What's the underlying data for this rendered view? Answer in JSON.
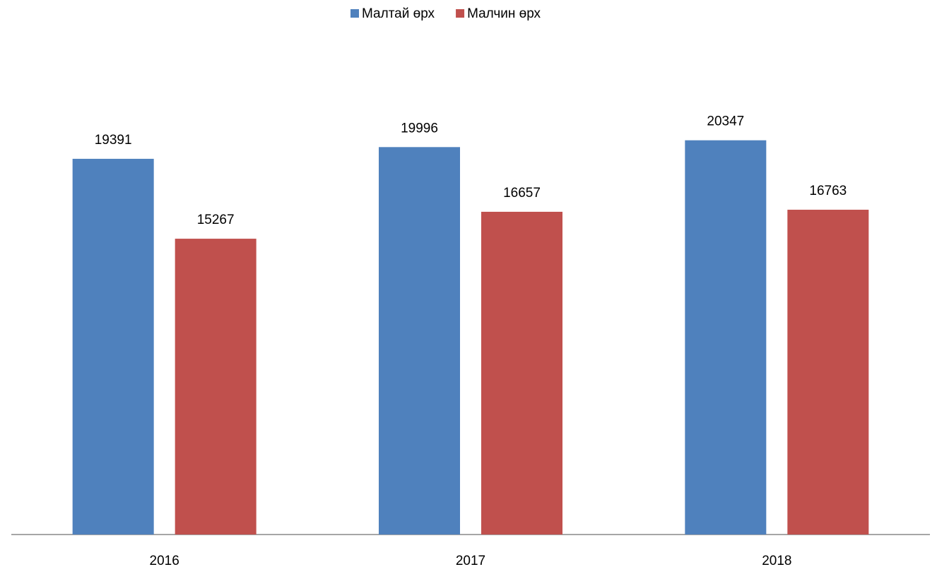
{
  "chart_data": {
    "type": "bar",
    "categories": [
      "2016",
      "2017",
      "2018"
    ],
    "series": [
      {
        "name": "Малтай өрх",
        "color": "#4f81bd",
        "values": [
          19391,
          19996,
          20347
        ]
      },
      {
        "name": "Малчин өрх",
        "color": "#c0504d",
        "values": [
          15267,
          16657,
          16763
        ]
      }
    ],
    "ylim": [
      0,
      25000
    ],
    "legend": "top"
  }
}
